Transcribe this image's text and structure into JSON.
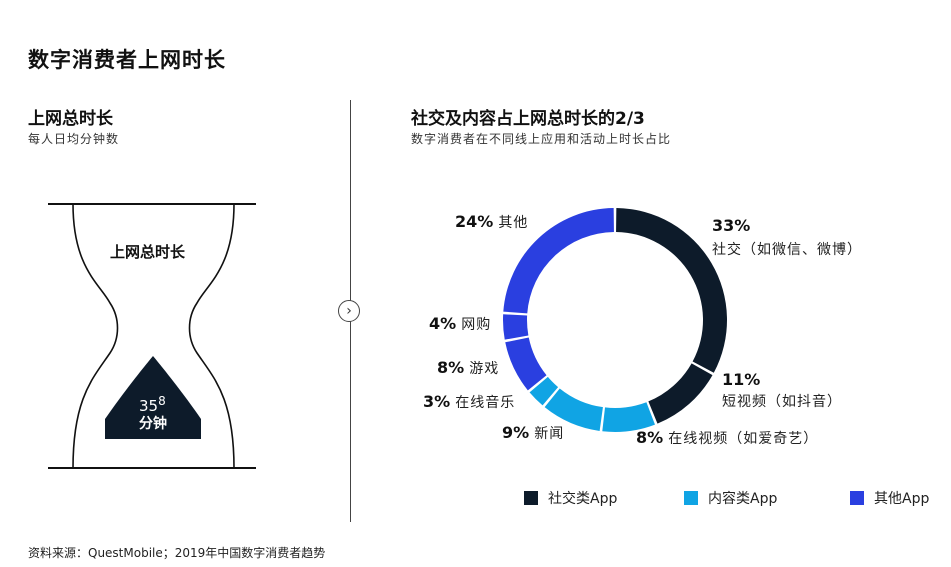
{
  "title": "数字消费者上网时长",
  "left": {
    "heading": "上网总时长",
    "subheading": "每人日均分钟数",
    "hourglass_label": "上网总时长",
    "value_base": "35",
    "value_sup": "8",
    "unit": "分钟"
  },
  "right": {
    "heading": "社交及内容占上网总时长的2/3",
    "subheading": "数字消费者在不同线上应用和活动上时长占比"
  },
  "colors": {
    "social": "#0d1b2a",
    "content": "#10a4e4",
    "other": "#2a3fe0"
  },
  "chart_data": {
    "type": "pie",
    "donut": true,
    "unit": "%",
    "slices": [
      {
        "pct": "33%",
        "label": "社交（如微信、微博）",
        "value": 33,
        "group": "social"
      },
      {
        "pct": "11%",
        "label": "短视频（如抖音）",
        "value": 11,
        "group": "social"
      },
      {
        "pct": "8%",
        "label": "在线视频（如爱奇艺）",
        "value": 8,
        "group": "content"
      },
      {
        "pct": "9%",
        "label": "新闻",
        "value": 9,
        "group": "content"
      },
      {
        "pct": "3%",
        "label": "在线音乐",
        "value": 3,
        "group": "content"
      },
      {
        "pct": "8%",
        "label": "游戏",
        "value": 8,
        "group": "other"
      },
      {
        "pct": "4%",
        "label": "网购",
        "value": 4,
        "group": "other"
      },
      {
        "pct": "24%",
        "label": "其他",
        "value": 24,
        "group": "other"
      }
    ],
    "legend": [
      {
        "label": "社交类App",
        "group": "social"
      },
      {
        "label": "内容类App",
        "group": "content"
      },
      {
        "label": "其他App",
        "group": "other"
      }
    ],
    "legend_position": "bottom"
  },
  "source": "资料来源：QuestMobile；2019年中国数字消费者趋势"
}
